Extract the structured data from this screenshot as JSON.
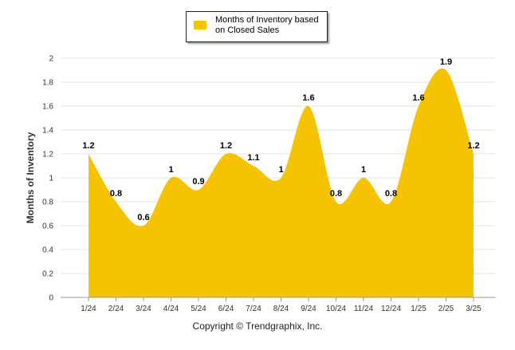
{
  "chart_data": {
    "type": "area",
    "categories": [
      "1/24",
      "2/24",
      "3/24",
      "4/24",
      "5/24",
      "6/24",
      "7/24",
      "8/24",
      "9/24",
      "10/24",
      "11/24",
      "12/24",
      "1/25",
      "2/25",
      "3/25"
    ],
    "series": [
      {
        "name": "Months of Inventory based on Closed Sales",
        "values": [
          1.2,
          0.8,
          0.6,
          1,
          0.9,
          1.2,
          1.1,
          1,
          1.6,
          0.8,
          1,
          0.8,
          1.6,
          1.9,
          1.2
        ],
        "labels": [
          "1.2",
          "0.8",
          "0.6",
          "1",
          "0.9",
          "1.2",
          "1.1",
          "1",
          "1.6",
          "0.8",
          "1",
          "0.8",
          "1.6",
          "1.9",
          "1.2"
        ],
        "color": "#F5C300"
      }
    ],
    "ylabel": "Months of Inventory",
    "ylim": [
      0,
      2
    ],
    "yticks": [
      0,
      0.2,
      0.4,
      0.6,
      0.8,
      1,
      1.2,
      1.4,
      1.6,
      1.8,
      2
    ],
    "ytick_labels": [
      "0",
      "0.2",
      "0.4",
      "0.6",
      "0.8",
      "1",
      "1.2",
      "1.4",
      "1.6",
      "1.8",
      "2"
    ],
    "grid": true,
    "legend_position": "top-center"
  },
  "footer": {
    "copyright": "Copyright © Trendgraphix, Inc."
  },
  "colors": {
    "area": "#F5C300",
    "grid": "#e6e6e6",
    "axis": "#999999"
  }
}
